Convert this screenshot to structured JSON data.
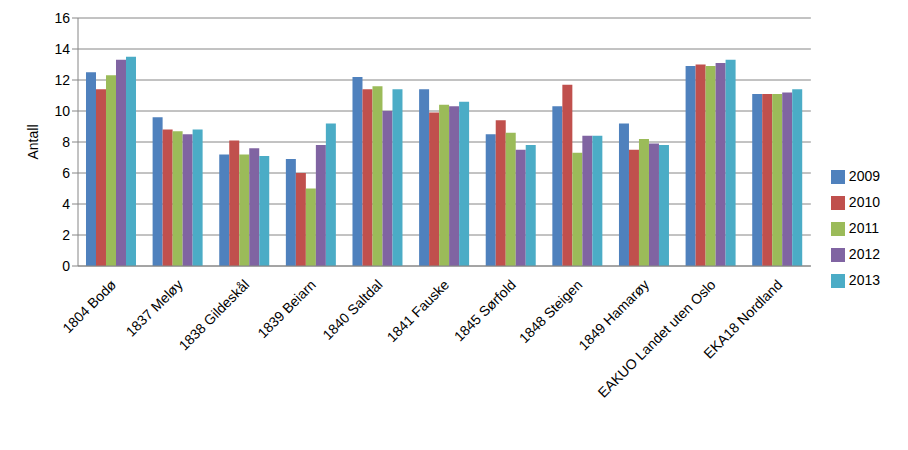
{
  "chart_data": {
    "type": "bar",
    "y_label": "Antall",
    "categories": [
      "1804 Bodø",
      "1837 Meløy",
      "1838 Gildeskål",
      "1839 Beiarn",
      "1840 Saltdal",
      "1841 Fauske",
      "1845 Sørfold",
      "1848 Steigen",
      "1849 Hamarøy",
      "EAKUO Landet uten Oslo",
      "EKA18 Nordland"
    ],
    "series": [
      {
        "name": "2009",
        "color": "#4f81bd",
        "values": [
          12.5,
          9.6,
          7.2,
          6.9,
          12.2,
          11.4,
          8.5,
          10.3,
          9.2,
          12.9,
          11.1
        ]
      },
      {
        "name": "2010",
        "color": "#c0504d",
        "values": [
          11.4,
          8.8,
          8.1,
          6.0,
          11.4,
          9.9,
          9.4,
          11.7,
          7.5,
          13.0,
          11.1
        ]
      },
      {
        "name": "2011",
        "color": "#9bbb59",
        "values": [
          12.3,
          8.7,
          7.2,
          5.0,
          11.6,
          10.4,
          8.6,
          7.3,
          8.2,
          12.9,
          11.1
        ]
      },
      {
        "name": "2012",
        "color": "#8064a2",
        "values": [
          13.3,
          8.5,
          7.6,
          7.8,
          10.0,
          10.3,
          7.5,
          8.4,
          7.9,
          13.1,
          11.2
        ]
      },
      {
        "name": "2013",
        "color": "#4bacc6",
        "values": [
          13.5,
          8.8,
          7.1,
          9.2,
          11.4,
          10.6,
          7.8,
          8.4,
          7.8,
          13.3,
          11.4
        ]
      }
    ],
    "ylim": [
      0,
      16
    ],
    "yticks": [
      0,
      2,
      4,
      6,
      8,
      10,
      12,
      14,
      16
    ],
    "grid": true,
    "legend": "right"
  }
}
